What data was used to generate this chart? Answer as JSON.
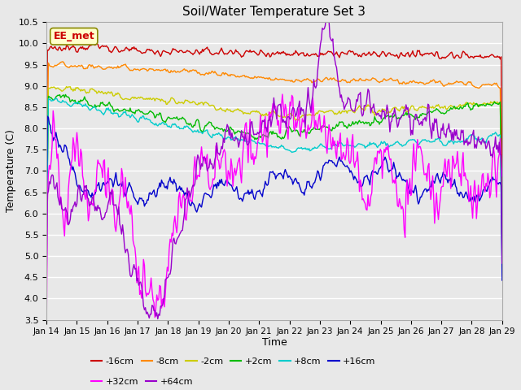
{
  "title": "Soil/Water Temperature Set 3",
  "xlabel": "Time",
  "ylabel": "Temperature (C)",
  "ylim": [
    3.5,
    10.5
  ],
  "yticks": [
    3.5,
    4.0,
    4.5,
    5.0,
    5.5,
    6.0,
    6.5,
    7.0,
    7.5,
    8.0,
    8.5,
    9.0,
    9.5,
    10.0,
    10.5
  ],
  "xtick_labels": [
    "Jan 14",
    "Jan 15",
    "Jan 16",
    "Jan 17",
    "Jan 18",
    "Jan 19",
    "Jan 20",
    "Jan 21",
    "Jan 22",
    "Jan 23",
    "Jan 24",
    "Jan 25",
    "Jan 26",
    "Jan 27",
    "Jan 28",
    "Jan 29"
  ],
  "colors": {
    "-16cm": "#cc0000",
    "-8cm": "#ff8800",
    "-2cm": "#cccc00",
    "+2cm": "#00bb00",
    "+8cm": "#00cccc",
    "+16cm": "#0000cc",
    "+32cm": "#ff00ff",
    "+64cm": "#9900cc"
  },
  "annotation_text": "EE_met",
  "annotation_color": "#cc0000",
  "annotation_bg": "#ffffcc",
  "background_color": "#e8e8e8",
  "grid_color": "#ffffff",
  "n_points": 480
}
